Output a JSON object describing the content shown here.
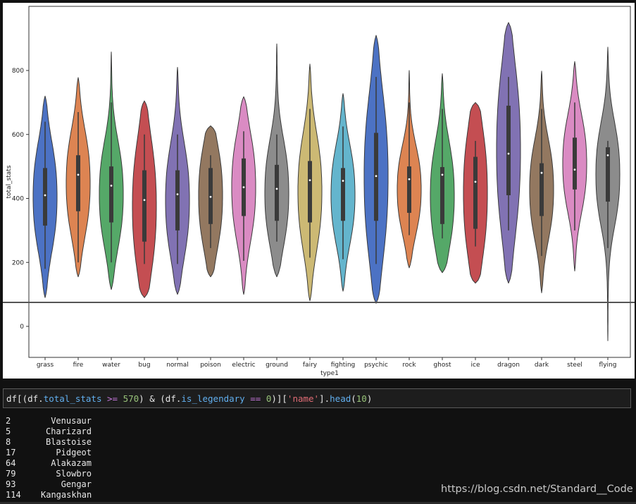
{
  "chart_data": {
    "type": "violin",
    "xlabel": "type1",
    "ylabel": "total_stats",
    "ylim": [
      -100,
      1000
    ],
    "yticks": [
      0,
      200,
      400,
      600,
      800
    ],
    "categories": [
      "grass",
      "fire",
      "water",
      "bug",
      "normal",
      "poison",
      "electric",
      "ground",
      "fairy",
      "fighting",
      "psychic",
      "rock",
      "ghost",
      "ice",
      "dragon",
      "dark",
      "steel",
      "flying"
    ],
    "violins": [
      {
        "category": "grass",
        "color": "#4c72c4",
        "min": 90,
        "max": 720,
        "q1": 315,
        "median": 410,
        "q3": 495,
        "wmin": 180,
        "wmax": 640
      },
      {
        "category": "fire",
        "color": "#dd8452",
        "min": 155,
        "max": 778,
        "q1": 360,
        "median": 474,
        "q3": 535,
        "wmin": 200,
        "wmax": 670
      },
      {
        "category": "water",
        "color": "#55a868",
        "min": 115,
        "max": 858,
        "q1": 325,
        "median": 440,
        "q3": 500,
        "wmin": 200,
        "wmax": 700
      },
      {
        "category": "bug",
        "color": "#c44e52",
        "min": 90,
        "max": 705,
        "q1": 265,
        "median": 395,
        "q3": 488,
        "wmin": 195,
        "wmax": 600
      },
      {
        "category": "normal",
        "color": "#8172b3",
        "min": 100,
        "max": 810,
        "q1": 300,
        "median": 413,
        "q3": 488,
        "wmin": 195,
        "wmax": 600
      },
      {
        "category": "poison",
        "color": "#937860",
        "min": 155,
        "max": 627,
        "q1": 320,
        "median": 405,
        "q3": 495,
        "wmin": 245,
        "wmax": 535
      },
      {
        "category": "electric",
        "color": "#da8bc3",
        "min": 100,
        "max": 718,
        "q1": 345,
        "median": 435,
        "q3": 525,
        "wmin": 205,
        "wmax": 610
      },
      {
        "category": "ground",
        "color": "#8c8c8c",
        "min": 155,
        "max": 883,
        "q1": 330,
        "median": 430,
        "q3": 505,
        "wmin": 265,
        "wmax": 600
      },
      {
        "category": "fairy",
        "color": "#ccb974",
        "min": 80,
        "max": 820,
        "q1": 325,
        "median": 457,
        "q3": 517,
        "wmin": 215,
        "wmax": 680
      },
      {
        "category": "fighting",
        "color": "#64b5cd",
        "min": 110,
        "max": 728,
        "q1": 330,
        "median": 455,
        "q3": 495,
        "wmin": 210,
        "wmax": 625
      },
      {
        "category": "psychic",
        "color": "#4c72c4",
        "min": 72,
        "max": 910,
        "q1": 330,
        "median": 470,
        "q3": 605,
        "wmin": 195,
        "wmax": 780
      },
      {
        "category": "rock",
        "color": "#dd8452",
        "min": 183,
        "max": 800,
        "q1": 355,
        "median": 460,
        "q3": 500,
        "wmin": 285,
        "wmax": 700
      },
      {
        "category": "ghost",
        "color": "#55a868",
        "min": 168,
        "max": 790,
        "q1": 320,
        "median": 474,
        "q3": 498,
        "wmin": 275,
        "wmax": 680
      },
      {
        "category": "ice",
        "color": "#c44e52",
        "min": 135,
        "max": 700,
        "q1": 305,
        "median": 452,
        "q3": 530,
        "wmin": 250,
        "wmax": 580
      },
      {
        "category": "dragon",
        "color": "#8172b3",
        "min": 135,
        "max": 950,
        "q1": 410,
        "median": 540,
        "q3": 690,
        "wmin": 300,
        "wmax": 780
      },
      {
        "category": "dark",
        "color": "#937860",
        "min": 105,
        "max": 798,
        "q1": 345,
        "median": 480,
        "q3": 510,
        "wmin": 220,
        "wmax": 680
      },
      {
        "category": "steel",
        "color": "#da8bc3",
        "min": 173,
        "max": 828,
        "q1": 428,
        "median": 490,
        "q3": 590,
        "wmin": 300,
        "wmax": 700
      },
      {
        "category": "flying",
        "color": "#8c8c8c",
        "min": -45,
        "max": 873,
        "q1": 390,
        "median": 535,
        "q3": 560,
        "wmin": 245,
        "wmax": 580
      }
    ]
  },
  "code": {
    "t1": "df[(df.",
    "t2": "total_stats",
    "t3": " >= ",
    "t4": "570",
    "t5": ") & (df.",
    "t6": "is_legendary",
    "t7": " == ",
    "t8": "0",
    "t9": ")][",
    "t10": "'name'",
    "t11": "].",
    "t12": "head",
    "t13": "(",
    "t14": "10",
    "t15": ")"
  },
  "output": {
    "rows": [
      {
        "index": "2",
        "name": "Venusaur"
      },
      {
        "index": "5",
        "name": "Charizard"
      },
      {
        "index": "8",
        "name": "Blastoise"
      },
      {
        "index": "17",
        "name": "Pidgeot"
      },
      {
        "index": "64",
        "name": "Alakazam"
      },
      {
        "index": "79",
        "name": "Slowbro"
      },
      {
        "index": "93",
        "name": "Gengar"
      },
      {
        "index": "114",
        "name": "Kangaskhan"
      }
    ]
  },
  "watermark": "https://blog.csdn.net/Standard__Code"
}
